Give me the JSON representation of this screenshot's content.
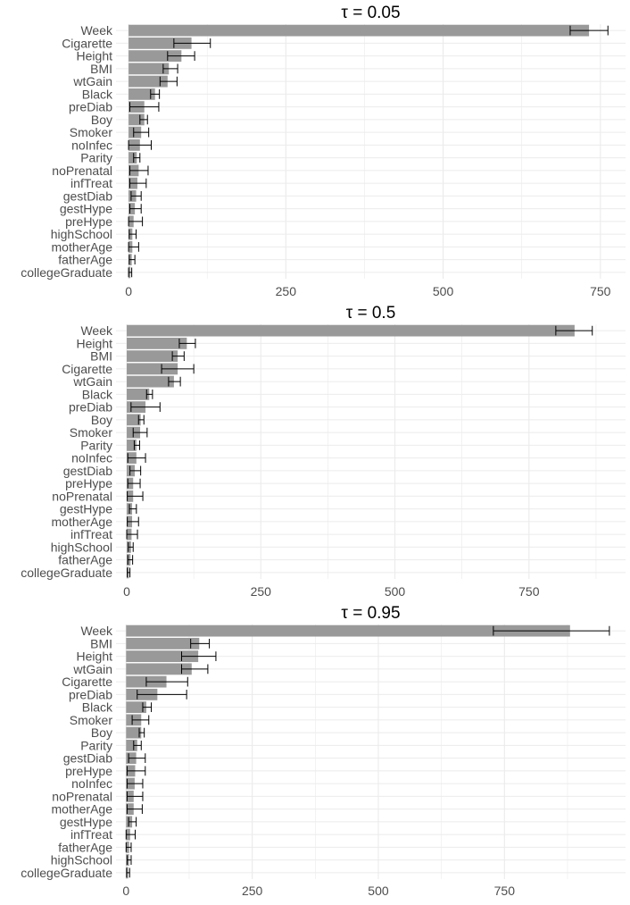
{
  "colors": {
    "bar": "#999999",
    "grid": "#ebebeb",
    "error": "#000000",
    "text": "#4d4d4d",
    "title": "#000000"
  },
  "chart_data": [
    {
      "type": "bar",
      "orientation": "horizontal",
      "title": "τ = 0.05",
      "xlim": [
        -20,
        790
      ],
      "ticks": [
        0,
        250,
        500,
        750
      ],
      "tick_labels": [
        "0",
        "250",
        "500",
        "750"
      ],
      "grid": true,
      "categories": [
        "Week",
        "Cigarette",
        "Height",
        "BMI",
        "wtGain",
        "Black",
        "preDiab",
        "Boy",
        "Smoker",
        "noInfec",
        "Parity",
        "noPrenatal",
        "infTreat",
        "gestDiab",
        "gestHype",
        "preHype",
        "highSchool",
        "motherAge",
        "fatherAge",
        "collegeGraduate"
      ],
      "values": [
        732,
        100,
        84,
        64,
        62,
        42,
        25,
        25,
        20,
        18,
        13,
        16,
        14,
        12,
        10,
        8,
        6,
        6,
        5,
        3
      ],
      "error_low": [
        702,
        72,
        62,
        55,
        50,
        35,
        2,
        18,
        8,
        0,
        8,
        2,
        2,
        4,
        2,
        0,
        1,
        0,
        1,
        0
      ],
      "error_high": [
        762,
        130,
        105,
        78,
        77,
        49,
        48,
        30,
        32,
        36,
        18,
        31,
        28,
        20,
        20,
        22,
        12,
        16,
        10,
        5
      ]
    },
    {
      "type": "bar",
      "orientation": "horizontal",
      "title": "τ = 0.5",
      "xlim": [
        -20,
        930
      ],
      "ticks": [
        0,
        250,
        500,
        750
      ],
      "tick_labels": [
        "0",
        "250",
        "500",
        "750"
      ],
      "grid": true,
      "categories": [
        "Week",
        "Height",
        "BMI",
        "Cigarette",
        "wtGain",
        "Black",
        "preDiab",
        "Boy",
        "Smoker",
        "Parity",
        "noInfec",
        "gestDiab",
        "preHype",
        "noPrenatal",
        "gestHype",
        "motherAge",
        "infTreat",
        "highSchool",
        "fatherAge",
        "collegeGraduate"
      ],
      "values": [
        835,
        112,
        95,
        95,
        88,
        42,
        35,
        26,
        25,
        18,
        18,
        15,
        12,
        12,
        10,
        10,
        9,
        8,
        7,
        4
      ],
      "error_low": [
        800,
        98,
        85,
        65,
        78,
        37,
        8,
        22,
        12,
        14,
        2,
        6,
        2,
        1,
        5,
        1,
        0,
        3,
        2,
        1
      ],
      "error_high": [
        868,
        128,
        107,
        125,
        100,
        48,
        62,
        32,
        38,
        24,
        35,
        26,
        25,
        30,
        18,
        22,
        20,
        12,
        11,
        6
      ]
    },
    {
      "type": "bar",
      "orientation": "horizontal",
      "title": "τ = 0.95",
      "xlim": [
        -20,
        990
      ],
      "ticks": [
        0,
        250,
        500,
        750
      ],
      "tick_labels": [
        "0",
        "250",
        "500",
        "750"
      ],
      "grid": true,
      "categories": [
        "Week",
        "BMI",
        "Height",
        "wtGain",
        "Cigarette",
        "preDiab",
        "Black",
        "Smoker",
        "Boy",
        "Parity",
        "gestDiab",
        "preHype",
        "noInfec",
        "noPrenatal",
        "motherAge",
        "gestHype",
        "infTreat",
        "fatherAge",
        "highSchool",
        "collegeGraduate"
      ],
      "values": [
        880,
        145,
        143,
        130,
        80,
        62,
        40,
        30,
        30,
        22,
        20,
        18,
        17,
        15,
        15,
        12,
        8,
        6,
        6,
        4
      ],
      "error_low": [
        728,
        128,
        110,
        110,
        40,
        22,
        33,
        12,
        26,
        15,
        5,
        2,
        2,
        2,
        2,
        5,
        0,
        0,
        2,
        1
      ],
      "error_high": [
        958,
        165,
        178,
        162,
        122,
        120,
        50,
        45,
        36,
        30,
        38,
        38,
        33,
        33,
        32,
        20,
        18,
        10,
        10,
        7
      ]
    }
  ]
}
